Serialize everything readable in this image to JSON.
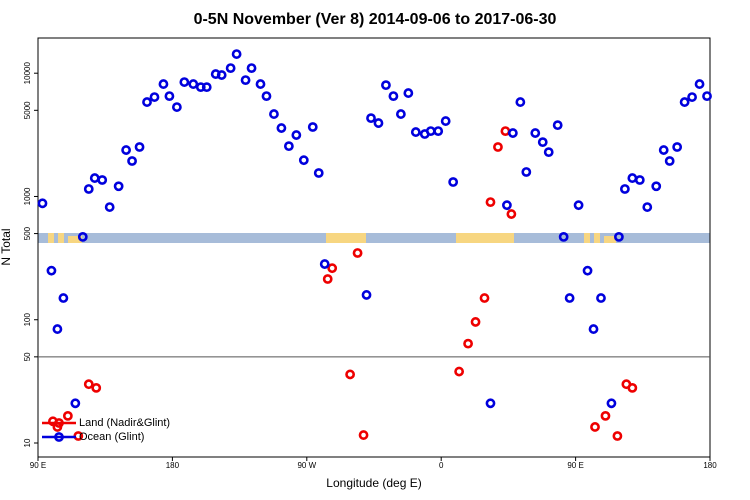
{
  "chart_data": {
    "type": "scatter",
    "title": "0-5N November (Ver 8)   2014-09-06 to 2017-06-30",
    "x_label": "Longitude (deg E)",
    "y_label": "N Total",
    "xlim": [
      90,
      540
    ],
    "xticks": [
      {
        "value": 90,
        "label": "90 E"
      },
      {
        "value": 180,
        "label": "180"
      },
      {
        "value": 270,
        "label": "90 W"
      },
      {
        "value": 360,
        "label": "0"
      },
      {
        "value": 450,
        "label": "90 E"
      },
      {
        "value": 540,
        "label": "180"
      }
    ],
    "ylim": [
      7.7,
      19300
    ],
    "ylog": true,
    "yticks": [
      10,
      50,
      100,
      500,
      1000,
      5000,
      10000
    ],
    "hline": 50,
    "grid": false,
    "legend": "lower left",
    "series": [
      {
        "name": "Land (Nadir&Glint)",
        "color": "#ee0000",
        "x": [
          100,
          103,
          110,
          117,
          124,
          129,
          284,
          287,
          299,
          304,
          308,
          372,
          378,
          383,
          389,
          393,
          398,
          403,
          407,
          463,
          470,
          478,
          484,
          488
        ],
        "values": [
          15,
          13.5,
          16.6,
          11.4,
          30,
          28,
          214,
          262,
          36,
          348,
          11.6,
          38,
          64,
          96,
          150,
          900,
          2520,
          3390,
          720,
          13.5,
          16.6,
          11.4,
          30,
          28
        ]
      },
      {
        "name": "Ocean (Glint)",
        "color": "#0000dd",
        "x": [
          93,
          99,
          103,
          107,
          115,
          120,
          124,
          128,
          133,
          138,
          144,
          149,
          153,
          158,
          163,
          168,
          174,
          178,
          183,
          188,
          194,
          199,
          203,
          209,
          213,
          219,
          223,
          229,
          233,
          239,
          243,
          248,
          253,
          258,
          263,
          268,
          274,
          278,
          282,
          310,
          313,
          318,
          323,
          328,
          333,
          338,
          343,
          349,
          353,
          358,
          363,
          368,
          393,
          404,
          408,
          413,
          417,
          423,
          428,
          432,
          438,
          442,
          446,
          452,
          458,
          462,
          467,
          474,
          479,
          483,
          488,
          493,
          498,
          504,
          509,
          513,
          518,
          523,
          528,
          533,
          538
        ],
        "values": [
          880,
          250,
          84,
          150,
          21,
          470,
          1150,
          1410,
          1360,
          820,
          1210,
          2380,
          1940,
          2520,
          5830,
          6400,
          8160,
          6520,
          5310,
          8470,
          8160,
          7710,
          7710,
          9840,
          9660,
          11000,
          14290,
          8790,
          11000,
          8160,
          6520,
          4660,
          3590,
          2560,
          3150,
          1970,
          3660,
          1550,
          283,
          159,
          4320,
          3940,
          8000,
          6520,
          4660,
          6900,
          3330,
          3210,
          3390,
          3390,
          4090,
          1310,
          21,
          850,
          3270,
          5830,
          1580,
          3270,
          2760,
          2290,
          3790,
          470,
          150,
          850,
          250,
          84,
          150,
          21,
          470,
          1150,
          1410,
          1360,
          820,
          1210,
          2380,
          1940,
          2520,
          5830,
          6400,
          8160,
          6520
        ]
      }
    ]
  }
}
